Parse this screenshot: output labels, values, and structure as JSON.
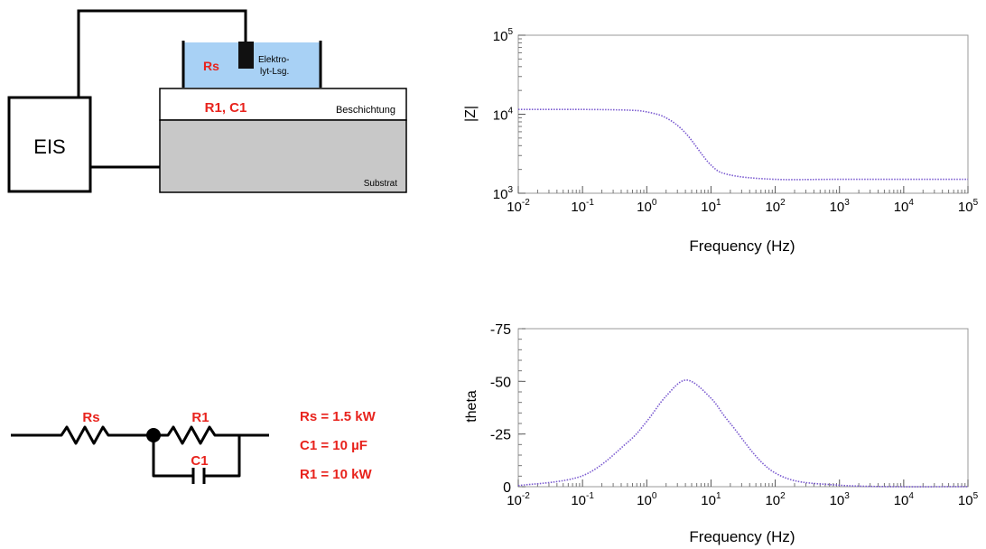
{
  "setup": {
    "eis_label": "EIS",
    "rs_label": "Rs",
    "electrolyte_label_line1": "Elektro-",
    "electrolyte_label_line2": "lyt-Lsg.",
    "coating_component_label": "R1, C1",
    "coating_label": "Beschichtung",
    "substrate_label": "Substrat",
    "colors": {
      "electrolyte": "#a8d1f5",
      "substrate": "#c8c8c8",
      "accent": "#e8231d"
    }
  },
  "circuit": {
    "rs_label": "Rs",
    "r1_label": "R1",
    "c1_label": "C1",
    "values": [
      "Rs = 1.5 kW",
      "C1 = 10 µF",
      "R1 = 10 kW"
    ]
  },
  "chart_data": [
    {
      "type": "line",
      "x_scale": "log",
      "y_scale": "log",
      "xlabel": "Frequency (Hz)",
      "ylabel": "|Z|",
      "xlim": [
        0.01,
        100000
      ],
      "ylim": [
        1000,
        100000
      ],
      "xticks": [
        "10^-2",
        "10^-1",
        "10^0",
        "10^1",
        "10^2",
        "10^3",
        "10^4",
        "10^5"
      ],
      "yticks": [
        "10^3",
        "10^4",
        "10^5"
      ],
      "x": [
        0.01,
        0.1,
        0.5,
        1,
        2,
        4,
        10,
        20,
        100,
        1000,
        100000
      ],
      "values": [
        11500,
        11490,
        11270,
        10700,
        9000,
        5800,
        2270,
        1700,
        1500,
        1500,
        1500
      ],
      "line_color": "#7a5ad0",
      "grid": false
    },
    {
      "type": "line",
      "x_scale": "log",
      "y_scale": "linear",
      "xlabel": "Frequency (Hz)",
      "ylabel": "theta",
      "xlim": [
        0.01,
        100000
      ],
      "ylim": [
        0,
        -75
      ],
      "yticks": [
        "-75",
        "-50",
        "-25",
        "0"
      ],
      "xticks": [
        "10^-2",
        "10^-1",
        "10^0",
        "10^1",
        "10^2",
        "10^3",
        "10^4",
        "10^5"
      ],
      "x": [
        0.01,
        0.1,
        0.5,
        1,
        2,
        4.2,
        10,
        20,
        100,
        1000,
        100000
      ],
      "values": [
        -0.5,
        -5.2,
        -21,
        -31,
        -43,
        -50.6,
        -42,
        -30,
        -6.5,
        -0.7,
        0
      ],
      "line_color": "#7a5ad0",
      "grid": false
    }
  ]
}
